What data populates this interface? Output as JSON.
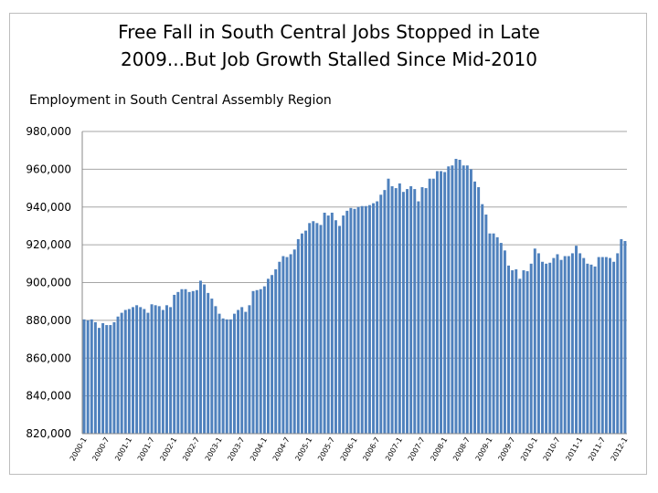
{
  "chart_data": {
    "type": "bar",
    "title_line1": "Free Fall in South Central Jobs Stopped in Late",
    "title_line2": "2009...But Job Growth Stalled Since Mid-2010",
    "subtitle": "Employment in South Central Assembly Region",
    "xlabel": "",
    "ylabel": "",
    "ylim": [
      820000,
      980000
    ],
    "yticks": [
      820000,
      840000,
      860000,
      880000,
      900000,
      920000,
      940000,
      960000,
      980000
    ],
    "ytick_labels": [
      "820,000",
      "840,000",
      "860,000",
      "880,000",
      "900,000",
      "920,000",
      "940,000",
      "960,000",
      "980,000"
    ],
    "xtick_labels": [
      "2000-1",
      "2000-7",
      "2001-1",
      "2001-7",
      "2002-1",
      "2002-7",
      "2003-1",
      "2003-7",
      "2004-1",
      "2004-7",
      "2005-1",
      "2005-7",
      "2006-1",
      "2006-7",
      "2007-1",
      "2007-7",
      "2008-1",
      "2008-7",
      "2009-1",
      "2009-7",
      "2010-1",
      "2010-7",
      "2011-1",
      "2011-7",
      "2012-1"
    ],
    "grid": true,
    "bar_color": "#4f81bd",
    "values": [
      880500,
      880000,
      880500,
      879000,
      876000,
      878500,
      877500,
      877500,
      879000,
      882000,
      884000,
      885500,
      886000,
      887000,
      888000,
      887000,
      886000,
      884000,
      888500,
      888000,
      887500,
      885500,
      888000,
      887000,
      893500,
      895000,
      896500,
      896500,
      895000,
      895500,
      896000,
      901000,
      899000,
      894500,
      891500,
      887500,
      883500,
      881000,
      880500,
      880500,
      883500,
      885500,
      887000,
      884500,
      888000,
      895500,
      896000,
      896500,
      898000,
      902000,
      904000,
      907000,
      911000,
      914000,
      913500,
      915000,
      917500,
      923000,
      926000,
      927500,
      931500,
      932500,
      931500,
      930500,
      937000,
      935500,
      937000,
      933000,
      930000,
      935500,
      938000,
      939500,
      939000,
      940000,
      940500,
      940500,
      941000,
      942000,
      943000,
      946500,
      949000,
      955000,
      951000,
      950000,
      952500,
      948000,
      949500,
      951000,
      949500,
      943000,
      950500,
      950000,
      955000,
      955000,
      959000,
      959000,
      958500,
      961500,
      962000,
      965500,
      965000,
      962000,
      962000,
      960000,
      953500,
      950500,
      941500,
      936000,
      926000,
      926000,
      924000,
      921000,
      917000,
      909000,
      906500,
      907000,
      902000,
      906500,
      906000,
      910000,
      918000,
      915500,
      911000,
      910000,
      910500,
      913000,
      915000,
      912000,
      914000,
      914000,
      915500,
      919500,
      915500,
      913000,
      910000,
      909500,
      908500,
      913500,
      913500,
      913500,
      913000,
      911000,
      915500,
      923000,
      922000
    ]
  }
}
